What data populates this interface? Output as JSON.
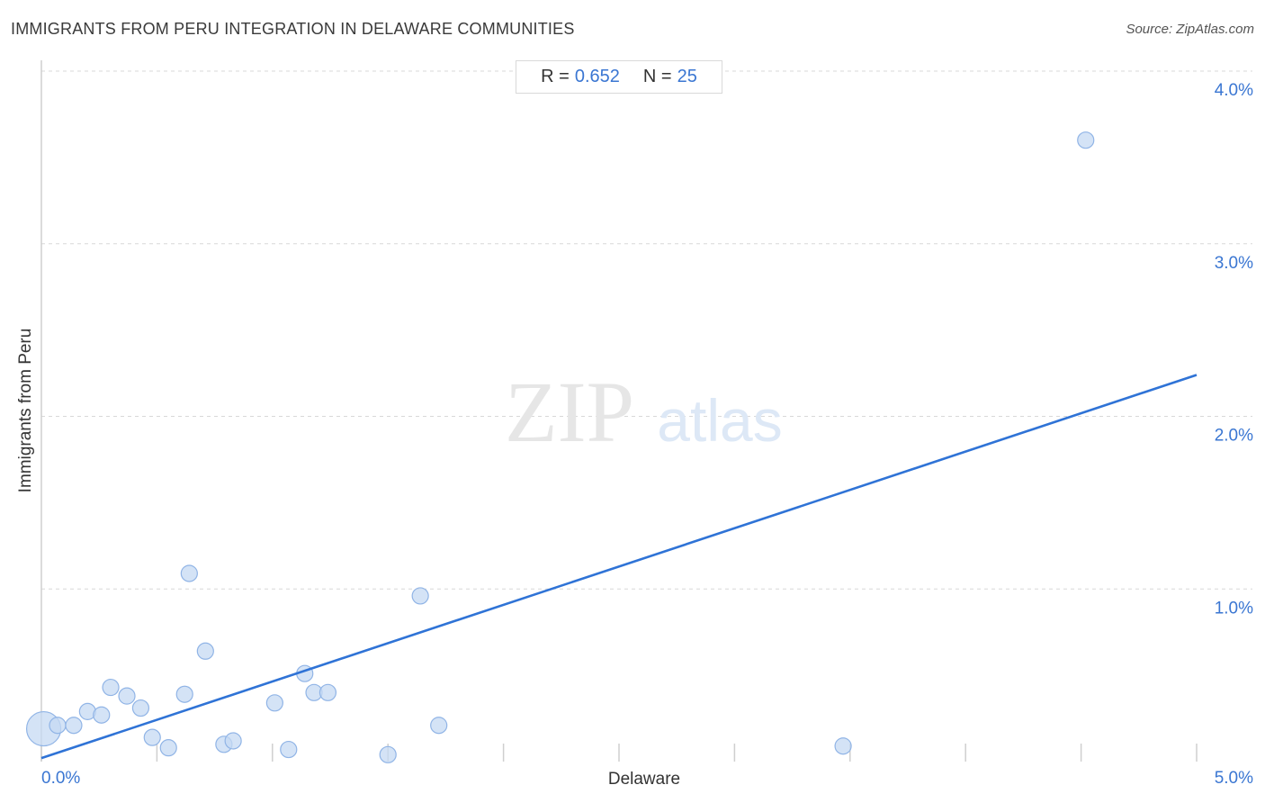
{
  "header": {
    "title": "IMMIGRANTS FROM PERU INTEGRATION IN DELAWARE COMMUNITIES",
    "source": "Source: ZipAtlas.com"
  },
  "stats": {
    "r_label": "R =",
    "r_value": "0.652",
    "n_label": "N =",
    "n_value": "25"
  },
  "watermark": {
    "zip": "ZIP",
    "atlas": "atlas"
  },
  "colors": {
    "accent": "#2f73d6",
    "point_fill": "#c5d9f3",
    "point_stroke": "#90b4e6",
    "grid": "#d8d8d8",
    "tick_label": "#3a76d2"
  },
  "chart_data": {
    "type": "scatter",
    "xlabel": "Delaware",
    "ylabel": "Immigrants from Peru",
    "xlim": [
      0,
      5
    ],
    "ylim": [
      0,
      4
    ],
    "x_tick_labels": [
      {
        "value": 0,
        "label": "0.0%"
      },
      {
        "value": 5,
        "label": "5.0%"
      }
    ],
    "y_tick_labels": [
      {
        "value": 1,
        "label": "1.0%"
      },
      {
        "value": 2,
        "label": "2.0%"
      },
      {
        "value": 3,
        "label": "3.0%"
      },
      {
        "value": 4,
        "label": "4.0%"
      }
    ],
    "grid": true,
    "points": [
      {
        "x": 0.01,
        "y": 0.19,
        "large": true
      },
      {
        "x": 0.07,
        "y": 0.21
      },
      {
        "x": 0.14,
        "y": 0.21
      },
      {
        "x": 0.2,
        "y": 0.29
      },
      {
        "x": 0.26,
        "y": 0.27
      },
      {
        "x": 0.3,
        "y": 0.43
      },
      {
        "x": 0.37,
        "y": 0.38
      },
      {
        "x": 0.43,
        "y": 0.31
      },
      {
        "x": 0.48,
        "y": 0.14
      },
      {
        "x": 0.55,
        "y": 0.08
      },
      {
        "x": 0.62,
        "y": 0.39
      },
      {
        "x": 0.64,
        "y": 1.09
      },
      {
        "x": 0.71,
        "y": 0.64
      },
      {
        "x": 0.79,
        "y": 0.1
      },
      {
        "x": 0.83,
        "y": 0.12
      },
      {
        "x": 1.01,
        "y": 0.34
      },
      {
        "x": 1.07,
        "y": 0.07
      },
      {
        "x": 1.14,
        "y": 0.51
      },
      {
        "x": 1.18,
        "y": 0.4
      },
      {
        "x": 1.24,
        "y": 0.4
      },
      {
        "x": 1.5,
        "y": 0.04
      },
      {
        "x": 1.64,
        "y": 0.96
      },
      {
        "x": 1.72,
        "y": 0.21
      },
      {
        "x": 3.47,
        "y": 0.09
      },
      {
        "x": 4.52,
        "y": 3.6
      }
    ],
    "trendline": {
      "x1": 0.0,
      "y1": 0.02,
      "x2": 5.0,
      "y2": 2.24
    }
  }
}
